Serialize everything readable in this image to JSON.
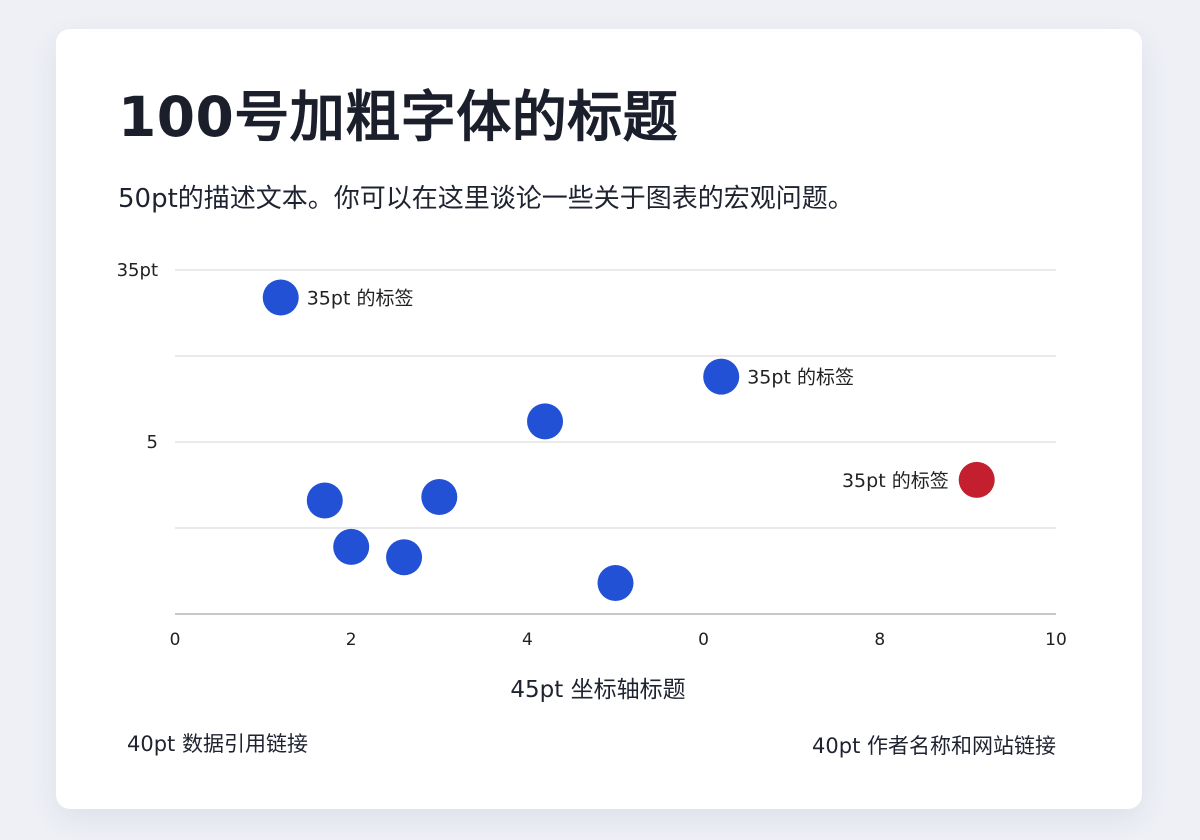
{
  "title": "100号加粗字体的标题",
  "subtitle": "50pt的描述文本。你可以在这里谈论一些关于图表的宏观问题。",
  "footer": {
    "source": "40pt 数据引用链接",
    "author": "40pt 作者名称和网站链接"
  },
  "colors": {
    "point": "#2251d6",
    "highlight": "#c41f2e",
    "grid": "#d6d6d6",
    "axis": "#c8c8c8"
  },
  "chart_data": {
    "type": "scatter",
    "xlabel": "45pt 坐标轴标题",
    "ylabel": "",
    "xlim": [
      0,
      10
    ],
    "xticks": [
      "0",
      "2",
      "4",
      "0",
      "8",
      "10"
    ],
    "y_tick_labels": [
      "35pt",
      "",
      "5",
      "",
      ""
    ],
    "grid": true,
    "points": [
      {
        "x": 1.2,
        "y": 0.92,
        "label": "35pt 的标签",
        "color": "#2251d6"
      },
      {
        "x": 6.2,
        "y": 0.69,
        "label": "35pt 的标签",
        "color": "#2251d6"
      },
      {
        "x": 4.2,
        "y": 0.56,
        "color": "#2251d6"
      },
      {
        "x": 9.1,
        "y": 0.39,
        "label": "35pt 的标签",
        "color": "#c41f2e",
        "highlight": true
      },
      {
        "x": 1.7,
        "y": 0.33,
        "color": "#2251d6"
      },
      {
        "x": 3.0,
        "y": 0.34,
        "color": "#2251d6"
      },
      {
        "x": 2.0,
        "y": 0.195,
        "color": "#2251d6"
      },
      {
        "x": 2.6,
        "y": 0.165,
        "color": "#2251d6"
      },
      {
        "x": 5.0,
        "y": 0.09,
        "color": "#2251d6"
      }
    ]
  }
}
